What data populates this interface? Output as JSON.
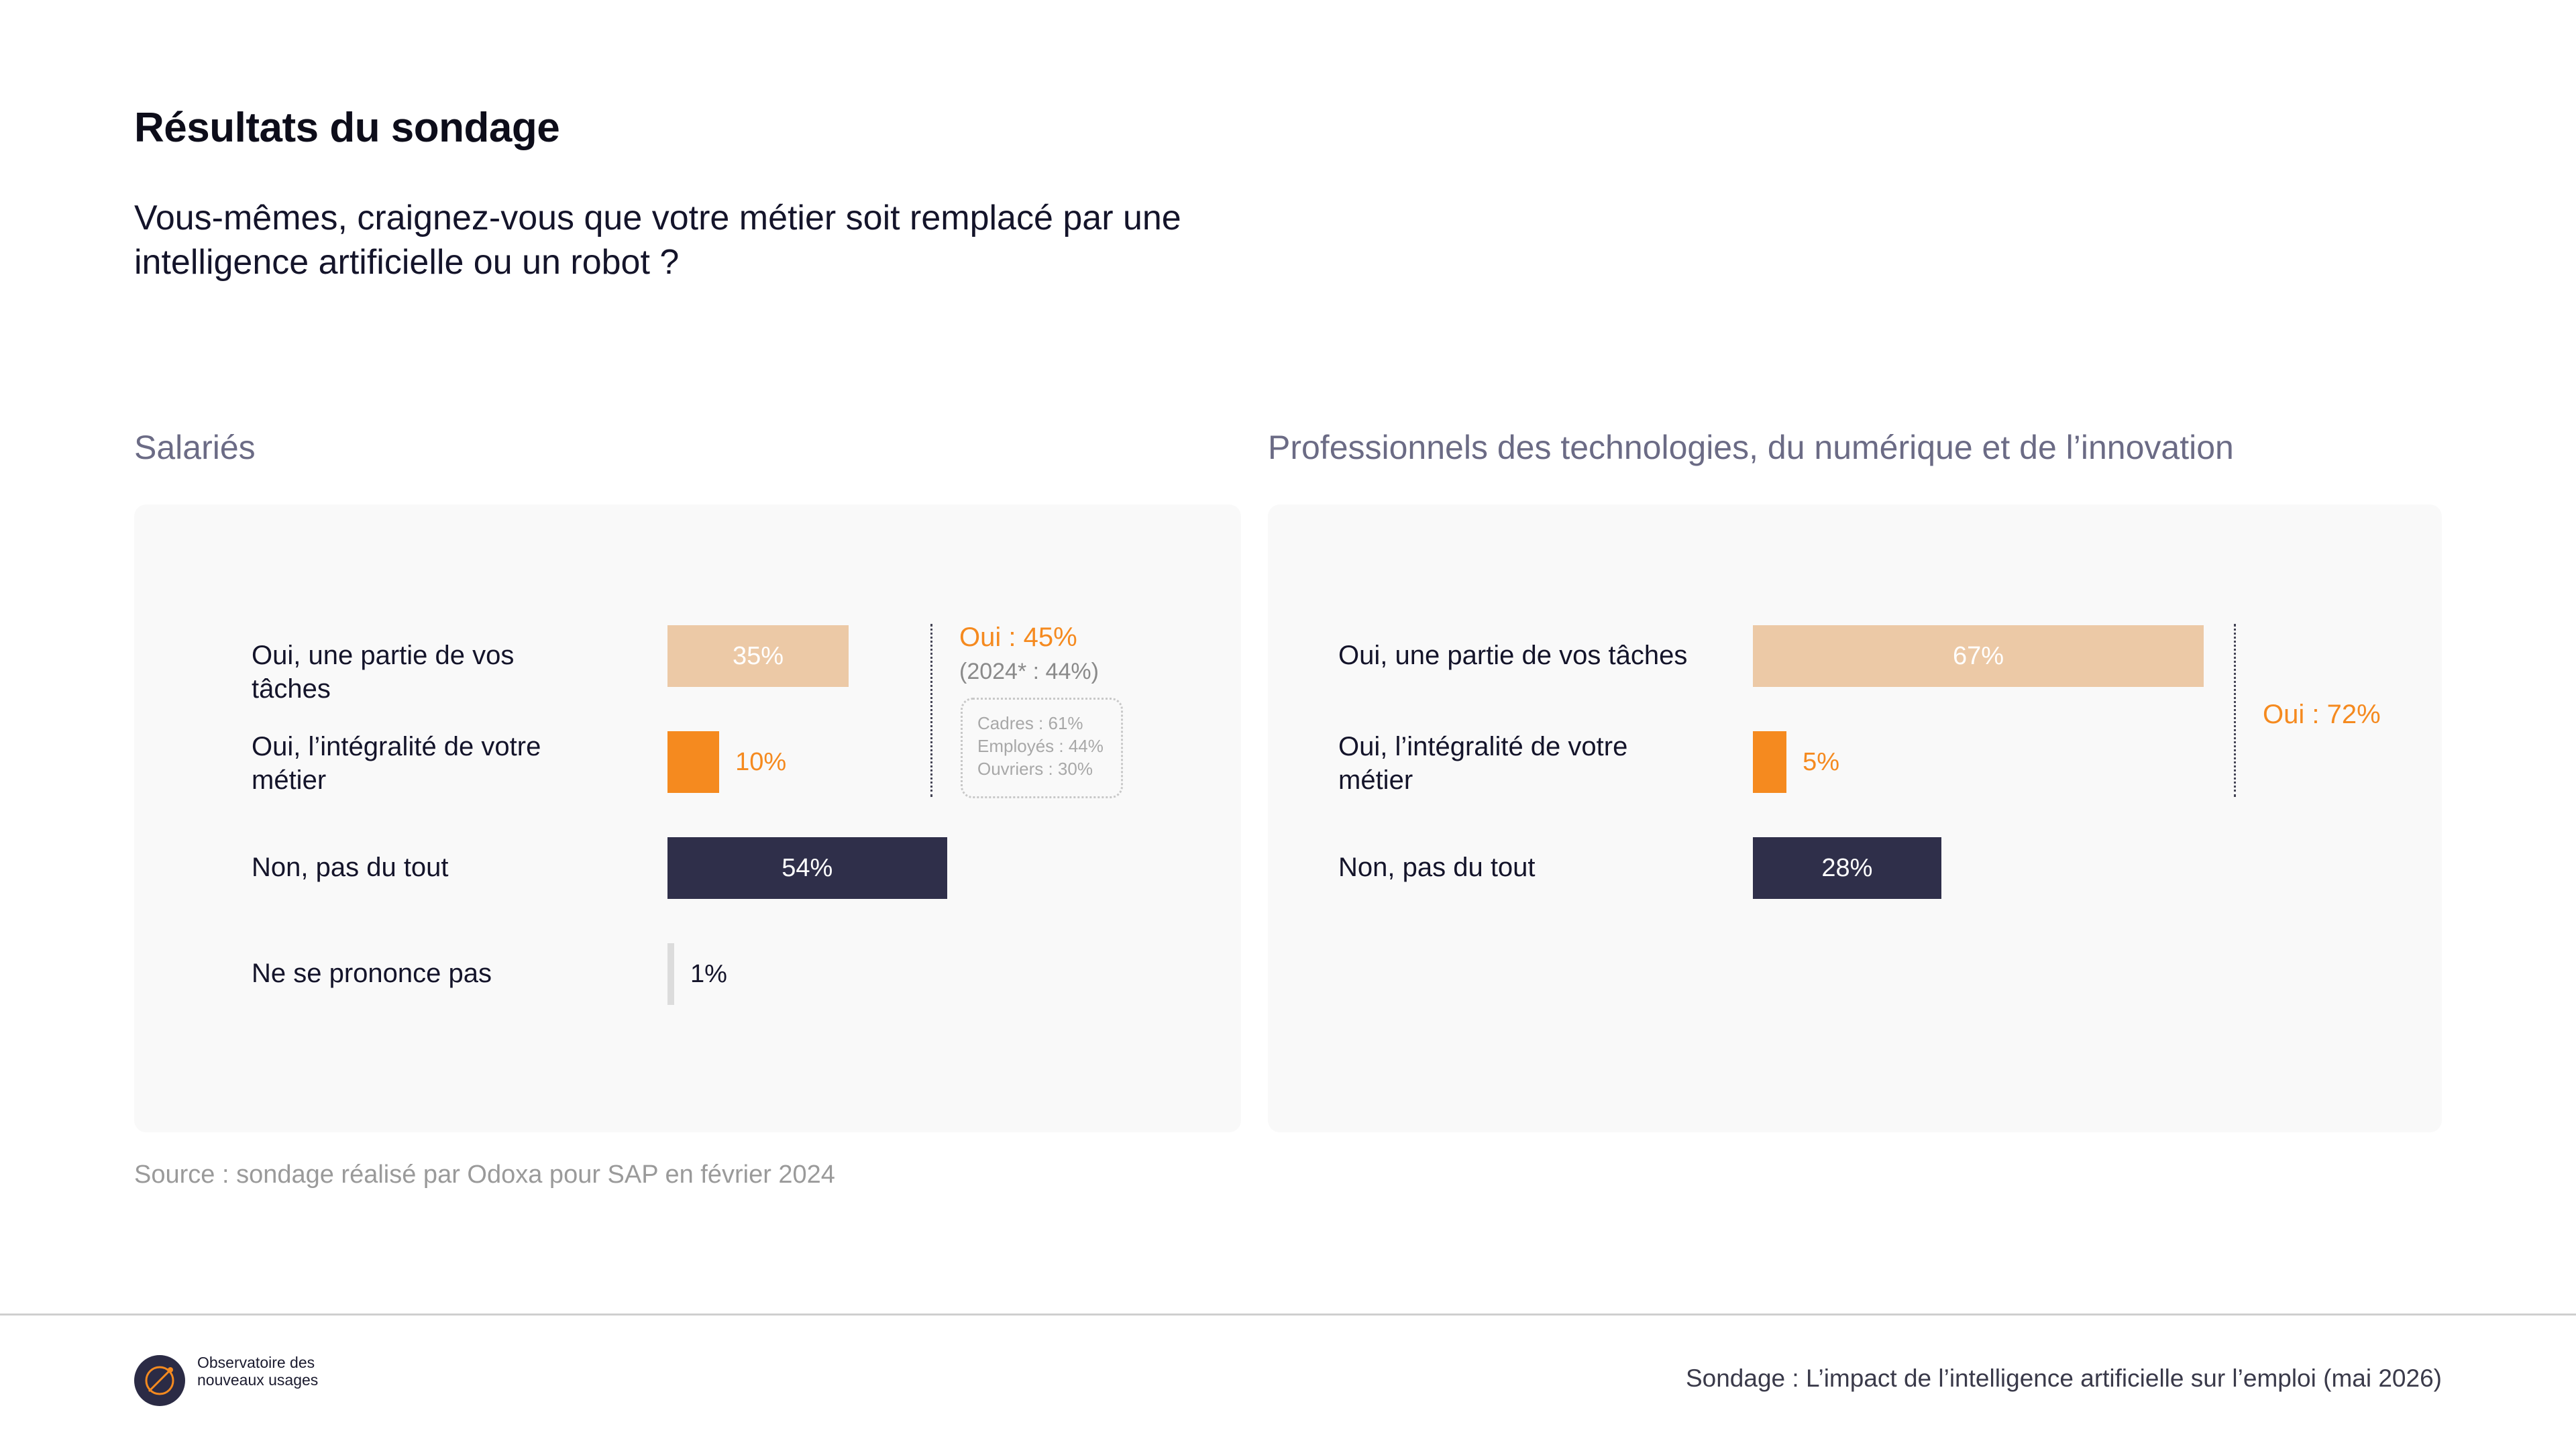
{
  "header": {
    "title": "Résultats du sondage",
    "question": "Vous-mêmes, craignez-vous que votre métier soit remplacé par une intelligence artificielle ou un robot ?"
  },
  "colors": {
    "partial": "#ecc9a6",
    "integral": "#f58a1f",
    "non": "#2f2f4a",
    "nsp": "#dcdcdc",
    "oui_accent": "#f58a1f"
  },
  "chart_data": [
    {
      "type": "bar",
      "orientation": "horizontal",
      "title": "Salariés",
      "categories": [
        "Oui, une partie de vos tâches",
        "Oui, l’intégralité de votre métier",
        "Non, pas du tout",
        "Ne se prononce pas"
      ],
      "values": [
        35,
        10,
        54,
        1
      ],
      "labels": [
        "35%",
        "10%",
        "54%",
        "1%"
      ],
      "xlim": [
        0,
        100
      ],
      "annotations": {
        "oui_total": "Oui : 45%",
        "oui_2024": "(2024* : 44%)",
        "details": [
          "Cadres : 61%",
          "Employés : 44%",
          "Ouvriers : 30%"
        ]
      }
    },
    {
      "type": "bar",
      "orientation": "horizontal",
      "title": "Professionnels des technologies, du numérique et de l’innovation",
      "categories": [
        "Oui, une partie de vos tâches",
        "Oui, l’intégralité de votre métier",
        "Non, pas du tout"
      ],
      "values": [
        67,
        5,
        28
      ],
      "labels": [
        "67%",
        "5%",
        "28%"
      ],
      "xlim": [
        0,
        100
      ],
      "annotations": {
        "oui_total": "Oui : 72%"
      }
    }
  ],
  "source": "Source : sondage réalisé par Odoxa pour SAP en février 2024",
  "footer": {
    "logo_text": "Observatoire des nouveaux usages",
    "right_text": "Sondage : L’impact de l’intelligence artificielle sur l’emploi (mai 2026)"
  }
}
